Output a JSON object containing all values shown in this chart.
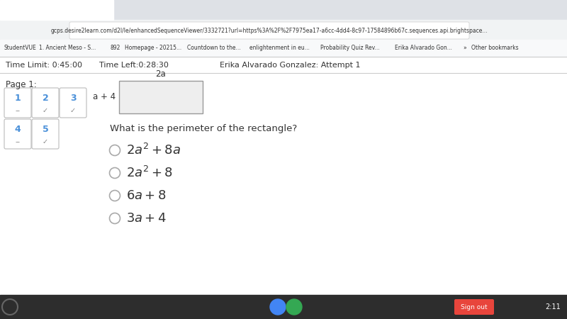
{
  "white_bg": "#ffffff",
  "tab_bar_color": "#dee1e6",
  "browser_toolbar_color": "#f1f3f4",
  "bookmark_bar_color": "#f8f9fa",
  "taskbar_color": "#2d2d2d",
  "page_label": "Page 1:",
  "question": "What is the perimeter of the rectangle?",
  "rect_width_label": "2a",
  "rect_height_label": "a + 4",
  "option_latex": [
    "$2a^2 + 8a$",
    "$2a^2 + 8$",
    "$6a + 8$",
    "$3a + 4$"
  ],
  "time_limit": "Time Limit: 0:45:00",
  "time_left": "Time Left:0:28:30",
  "student_name": "Erika Alvarado Gonzalez: Attempt 1",
  "nav_row1": [
    "1",
    "2",
    "3"
  ],
  "nav_row2": [
    "4",
    "5"
  ],
  "nav_marks_row1": [
    "--",
    "✓",
    "✓"
  ],
  "nav_marks_row2": [
    "--",
    "✓"
  ],
  "nav_color": "#4a90d9",
  "separator_color": "#cccccc",
  "text_color": "#333333",
  "rect_fill": "#eeeeee",
  "rect_edge": "#999999"
}
